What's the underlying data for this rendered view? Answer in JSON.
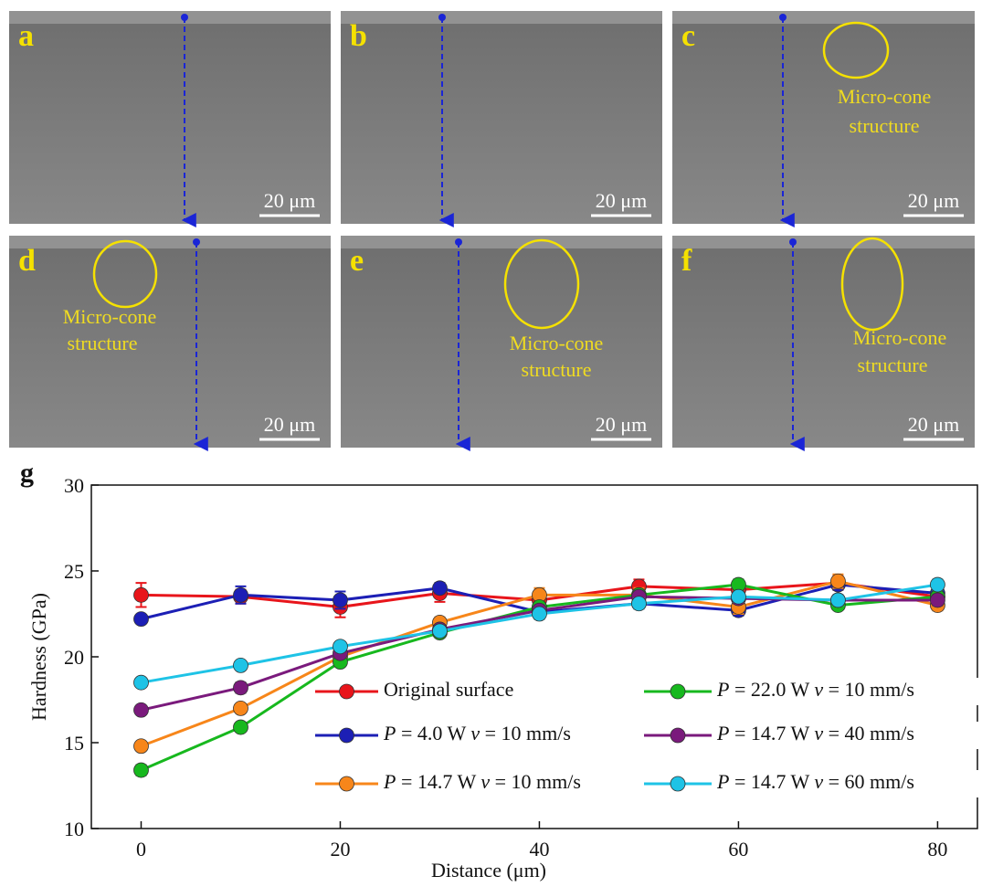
{
  "images": [
    {
      "label": "a",
      "scale_bar": "20 μm"
    },
    {
      "label": "b",
      "scale_bar": "20 μm"
    },
    {
      "label": "c",
      "scale_bar": "20 μm",
      "annotation": [
        "Micro-cone",
        "structure"
      ]
    },
    {
      "label": "d",
      "scale_bar": "20 μm",
      "annotation": [
        "Micro-cone",
        "structure"
      ]
    },
    {
      "label": "e",
      "scale_bar": "20 μm",
      "annotation": [
        "Micro-cone",
        "structure"
      ]
    },
    {
      "label": "f",
      "scale_bar": "20 μm",
      "annotation": [
        "Micro-cone",
        "structure"
      ]
    }
  ],
  "chart_data": {
    "type": "line",
    "panel_label": "g",
    "x_label": "Distance (μm)",
    "y_label": "Hardness (GPa)",
    "x": [
      0,
      10,
      20,
      30,
      40,
      50,
      60,
      70,
      80
    ],
    "xlim": [
      -5,
      84
    ],
    "xticks": [
      0,
      20,
      40,
      60,
      80
    ],
    "ylim": [
      10,
      30
    ],
    "yticks": [
      10,
      15,
      20,
      25,
      30
    ],
    "series": [
      {
        "name": "Original surface",
        "color": "#e8151b",
        "values": [
          23.6,
          23.5,
          22.9,
          23.7,
          23.3,
          24.1,
          23.9,
          24.3,
          23.5
        ],
        "errors": [
          0.7,
          0.4,
          0.6,
          0.5,
          0.4,
          0.4,
          0.3,
          0.4,
          0.4
        ]
      },
      {
        "name": "P = 4.0 W v = 10 mm/s",
        "color": "#1c1fb5",
        "values": [
          22.2,
          23.6,
          23.3,
          24.0,
          22.6,
          23.1,
          22.7,
          24.2,
          23.7
        ],
        "errors": [
          0.2,
          0.5,
          0.5,
          0.3,
          0.3,
          0.3,
          0.3,
          0.3,
          0.3
        ]
      },
      {
        "name": "P = 14.7 W v = 10 mm/s",
        "color": "#f7861a",
        "values": [
          14.8,
          17.0,
          20.0,
          22.0,
          23.6,
          23.6,
          22.9,
          24.4,
          23.0
        ],
        "errors": [
          0.2,
          0.2,
          0.3,
          0.3,
          0.4,
          0.4,
          0.4,
          0.4,
          0.3
        ]
      },
      {
        "name": "P = 22.0 W v = 10 mm/s",
        "color": "#17b81e",
        "values": [
          13.4,
          15.9,
          19.7,
          21.4,
          22.9,
          23.6,
          24.2,
          23.0,
          23.5
        ],
        "errors": [
          0.3,
          0.2,
          0.2,
          0.2,
          0.3,
          0.3,
          0.3,
          0.2,
          0.3
        ]
      },
      {
        "name": "P = 14.7 W v = 40 mm/s",
        "color": "#7a1a7c",
        "values": [
          16.9,
          18.2,
          20.2,
          21.6,
          22.7,
          23.5,
          23.4,
          23.3,
          23.3
        ],
        "errors": [
          0.2,
          0.3,
          0.2,
          0.2,
          0.3,
          0.3,
          0.3,
          0.3,
          0.3
        ]
      },
      {
        "name": "P = 14.7 W v = 60 mm/s",
        "color": "#1ec3e6",
        "values": [
          18.5,
          19.5,
          20.6,
          21.5,
          22.5,
          23.1,
          23.5,
          23.3,
          24.2
        ],
        "errors": [
          0.2,
          0.2,
          0.2,
          0.2,
          0.3,
          0.3,
          0.3,
          0.3,
          0.3
        ]
      }
    ]
  }
}
